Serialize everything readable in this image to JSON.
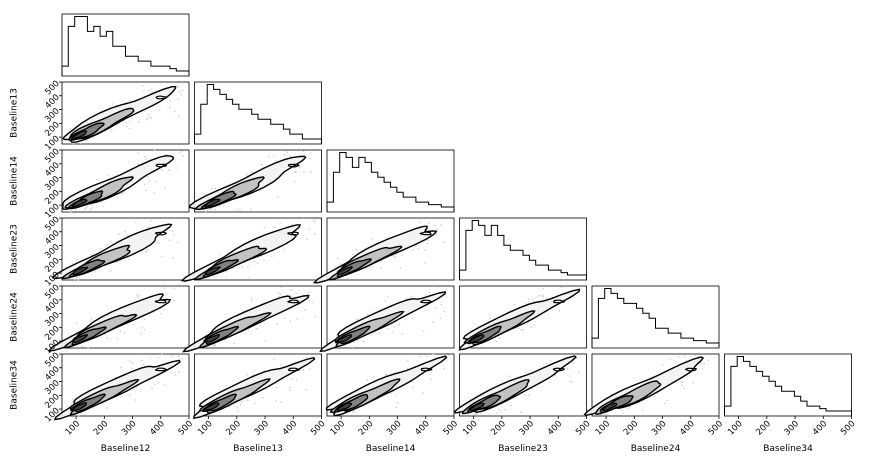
{
  "chart_data": {
    "type": "corner",
    "variables": [
      "Baseline12",
      "Baseline13",
      "Baseline14",
      "Baseline23",
      "Baseline24",
      "Baseline34"
    ],
    "range": [
      50,
      500
    ],
    "ticks": [
      100,
      200,
      300,
      400,
      500
    ],
    "tick_labels": [
      "100",
      "200",
      "300",
      "400",
      "500"
    ],
    "histograms": [
      [
        2,
        10,
        12,
        12,
        9,
        10,
        8,
        9,
        6,
        6,
        4,
        4,
        3,
        3,
        2,
        2,
        2,
        1.5,
        1,
        1
      ],
      [
        2,
        8,
        12,
        11,
        10,
        9,
        8,
        7,
        7,
        6,
        5,
        5,
        4,
        4,
        3,
        2,
        2,
        1,
        1,
        1
      ],
      [
        2,
        8,
        12,
        11,
        9,
        11,
        10,
        8,
        7,
        6,
        5,
        4,
        3,
        3,
        2,
        2,
        1.5,
        1.5,
        1,
        1
      ],
      [
        2,
        10,
        12,
        11,
        9,
        11,
        9,
        7,
        6,
        6,
        5,
        4,
        3,
        3,
        2,
        2,
        1.5,
        1,
        1,
        1
      ],
      [
        2,
        10,
        12,
        11,
        10,
        9,
        9,
        8,
        7,
        6,
        4,
        4,
        3,
        3,
        2,
        2,
        1.5,
        1.5,
        1,
        1
      ],
      [
        2,
        10,
        12,
        11,
        10,
        9,
        8,
        7,
        6,
        5,
        5,
        4,
        3,
        2,
        2,
        1.5,
        1,
        1,
        1,
        1
      ]
    ],
    "contour_levels": [
      0.2,
      0.45,
      0.7,
      0.9
    ],
    "scatter_style": "light-gray points"
  }
}
